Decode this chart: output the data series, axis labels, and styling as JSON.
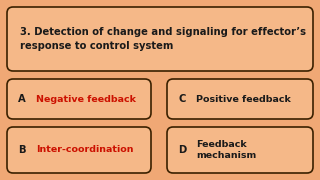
{
  "bg_color": "#f0a875",
  "box_bg": "#f5b888",
  "box_edge": "#3a2000",
  "question": "3. Detection of change and signaling for effector’s\nresponse to control system",
  "question_color": "#1a1a1a",
  "options": [
    {
      "label": "A",
      "text": "Negative feedback",
      "text_color": "#cc1100"
    },
    {
      "label": "C",
      "text": "Positive feedback",
      "text_color": "#1a1a1a"
    },
    {
      "label": "B",
      "text": "Inter-coordination",
      "text_color": "#cc1100"
    },
    {
      "label": "D",
      "text": "Feedback\nmechanism",
      "text_color": "#1a1a1a"
    }
  ],
  "label_color": "#1a1a1a",
  "font_size_q": 7.2,
  "font_size_opt": 6.8,
  "font_size_label": 7.2
}
